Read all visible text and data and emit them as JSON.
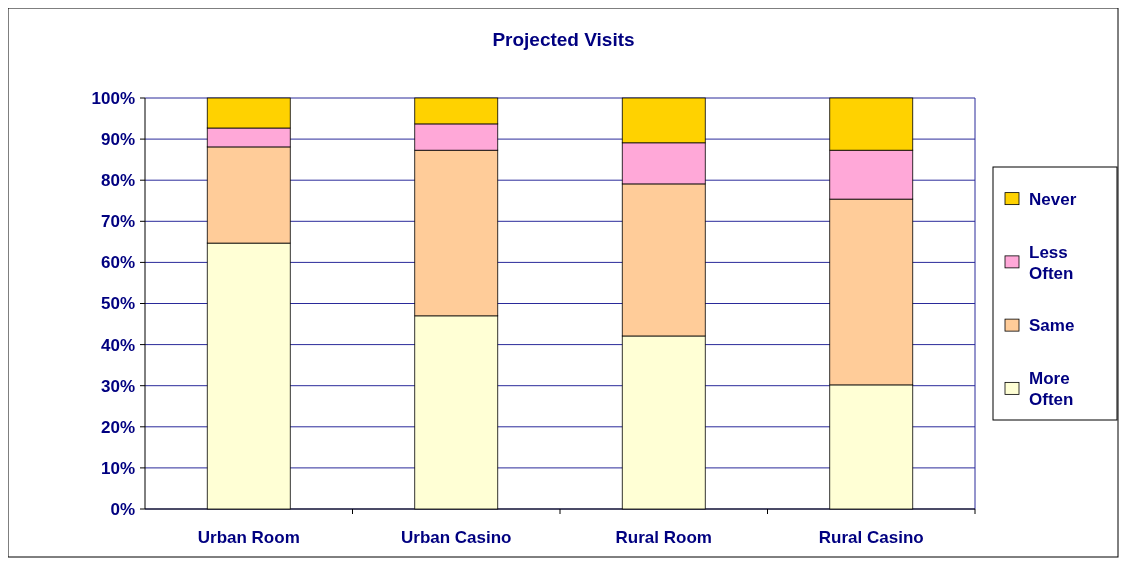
{
  "chart_data": {
    "type": "bar",
    "title": "Projected Visits",
    "stacked": true,
    "categories": [
      "Urban Room",
      "Urban Casino",
      "Rural Room",
      "Rural Casino"
    ],
    "series": [
      {
        "name": "More Often",
        "color": "#ffffd5",
        "values": [
          64.7,
          47.0,
          42.1,
          30.2
        ]
      },
      {
        "name": "Same",
        "color": "#ffcc99",
        "values": [
          23.4,
          40.3,
          37.0,
          45.2
        ]
      },
      {
        "name": "Less Often",
        "color": "#ffa8d8",
        "values": [
          4.6,
          6.4,
          10.0,
          11.9
        ]
      },
      {
        "name": "Never",
        "color": "#ffd200",
        "values": [
          7.3,
          6.3,
          10.9,
          12.7
        ]
      }
    ],
    "ylim": [
      0,
      100
    ],
    "yticks": [
      {
        "value": 0,
        "label": "0%"
      },
      {
        "value": 10,
        "label": "10%"
      },
      {
        "value": 20,
        "label": "20%"
      },
      {
        "value": 30,
        "label": "30%"
      },
      {
        "value": 40,
        "label": "40%"
      },
      {
        "value": 50,
        "label": "50%"
      },
      {
        "value": 60,
        "label": "60%"
      },
      {
        "value": 70,
        "label": "70%"
      },
      {
        "value": 80,
        "label": "80%"
      },
      {
        "value": 90,
        "label": "90%"
      },
      {
        "value": 100,
        "label": "100%"
      }
    ],
    "grid": "y",
    "legend": "right"
  }
}
